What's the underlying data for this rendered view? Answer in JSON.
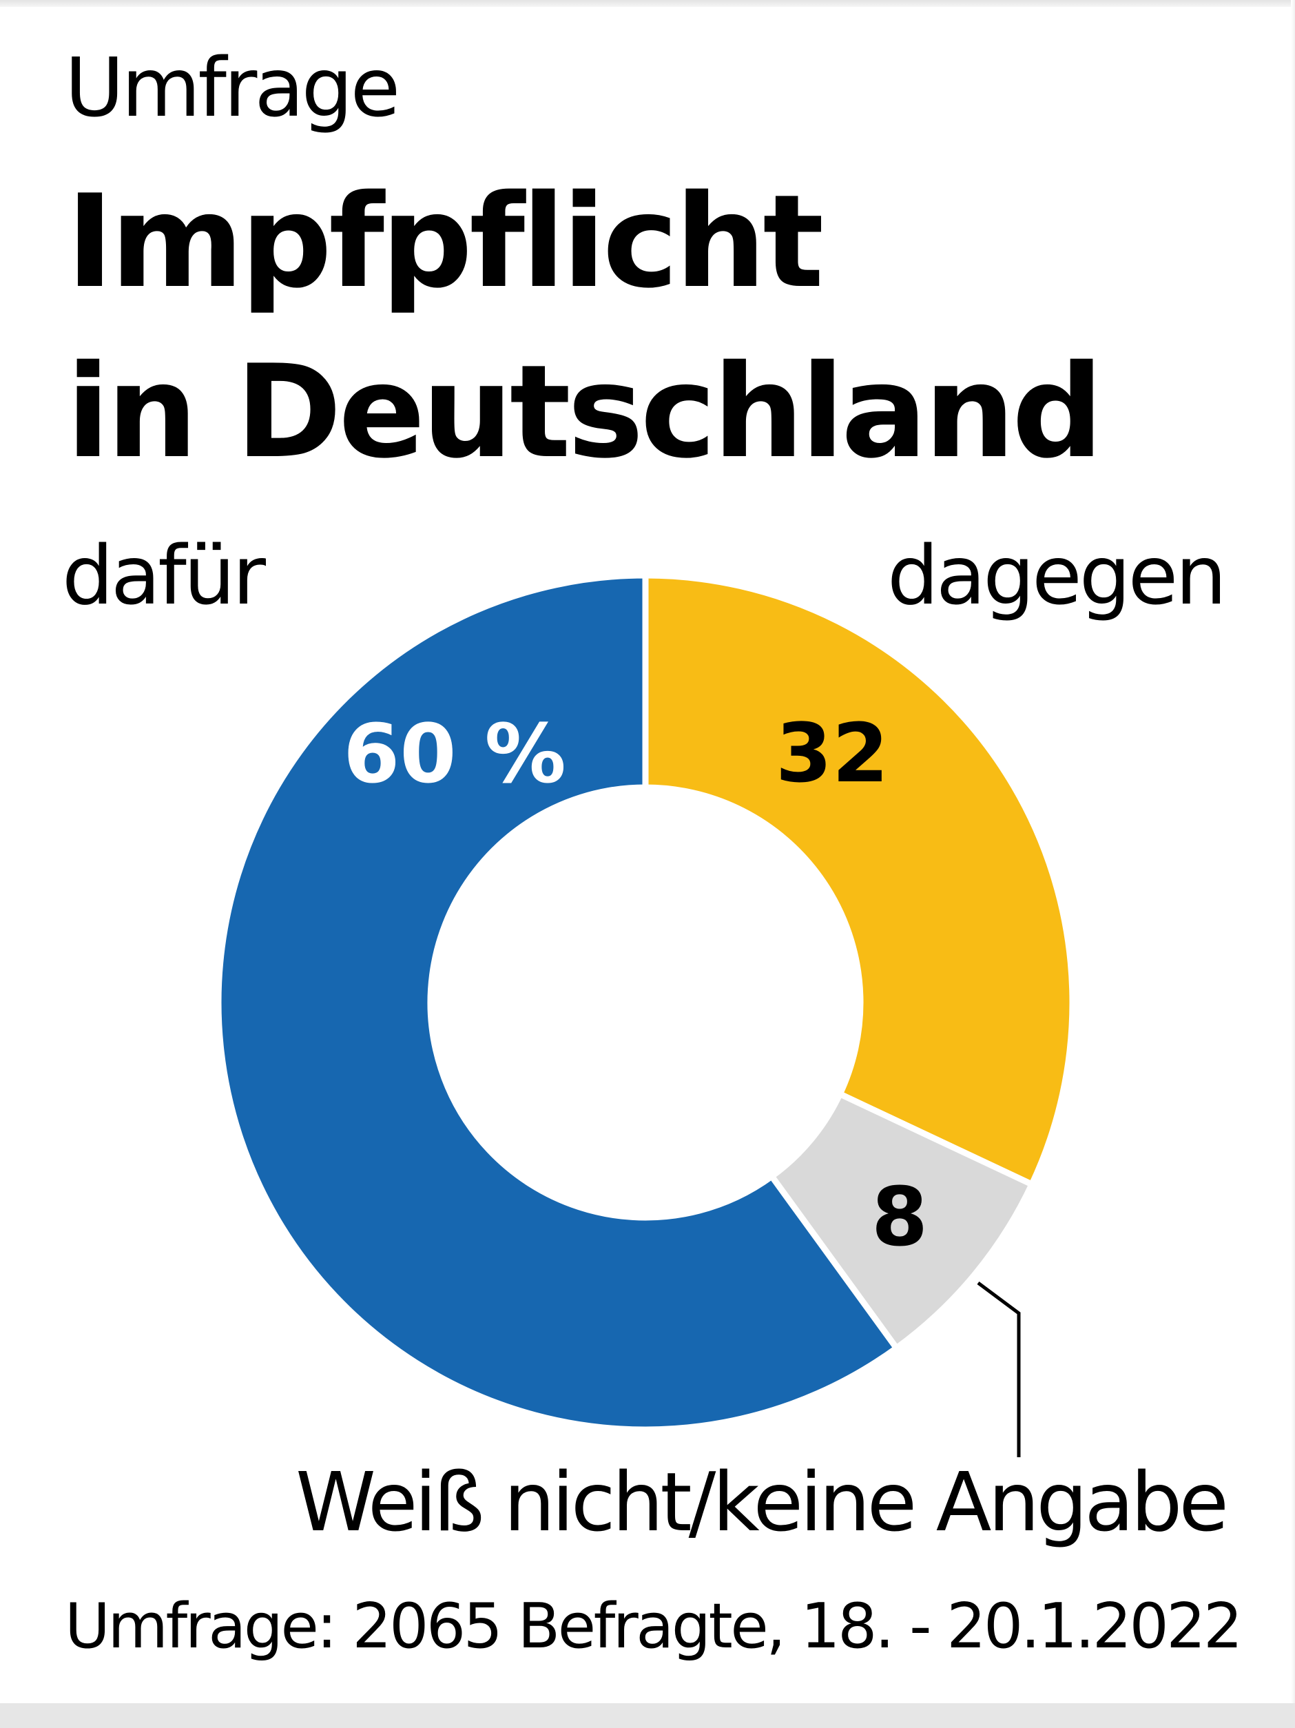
{
  "header": {
    "kicker": "Umfrage",
    "title_line1": "Impfpflicht",
    "title_line2": "in Deutschland"
  },
  "labels": {
    "for": "dafür",
    "against": "dagegen",
    "unknown": "Weiß nicht/keine Angabe"
  },
  "values": {
    "for": "60 %",
    "against": "32",
    "unknown": "8"
  },
  "footer": {
    "source": "Umfrage: 2065 Befragte, 18. - 20.1.2022"
  },
  "colors": {
    "for": "#1767b0",
    "against": "#f8bc15",
    "unknown": "#d9d9d9"
  },
  "chart_data": {
    "type": "pie",
    "variant": "donut",
    "title": "Impfpflicht in Deutschland",
    "subtitle": "Umfrage",
    "categories": [
      "dafür",
      "dagegen",
      "Weiß nicht/keine Angabe"
    ],
    "values": [
      60,
      32,
      8
    ],
    "unit": "%",
    "data_labels": [
      "60 %",
      "32",
      "8"
    ],
    "colors": [
      "#1767b0",
      "#f8bc15",
      "#d9d9d9"
    ],
    "start_angle": "12 o'clock, clockwise order: dagegen, Weiß nicht/keine Angabe, dafür",
    "note": "Umfrage: 2065 Befragte, 18. - 20.1.2022",
    "legend": "direct labels (dafür top-left, dagegen top-right, Weiß nicht/keine Angabe bottom-right with leader line)"
  }
}
